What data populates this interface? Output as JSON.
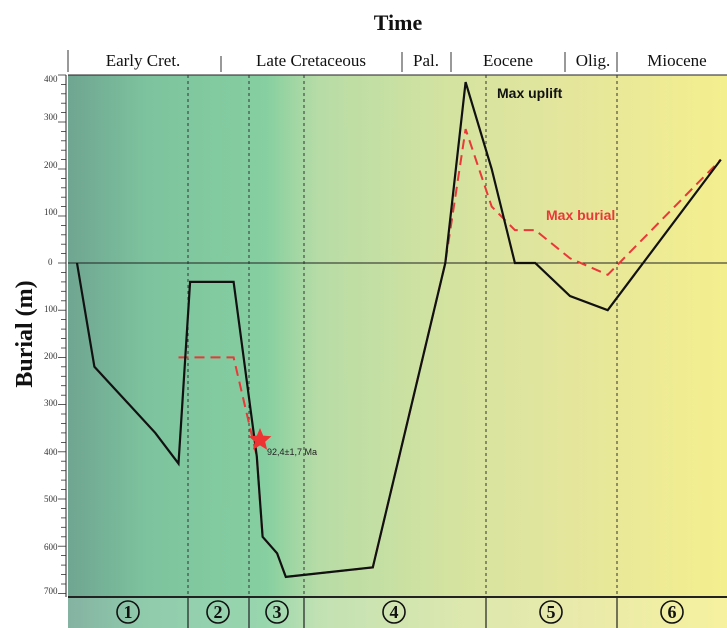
{
  "chart_data": {
    "type": "line",
    "title": "Time",
    "ylabel": "Burial (m)",
    "ylim": [
      -400,
      700
    ],
    "y_ticks_above": [
      "400",
      "300",
      "200",
      "100"
    ],
    "y_ticks_below": [
      "0",
      "100",
      "200",
      "300",
      "400",
      "500",
      "600",
      "700"
    ],
    "periods": [
      "Early Cret.",
      "Late Cretaceous",
      "Pal.",
      "Eocene",
      "Olig.",
      "Miocene"
    ],
    "phases": [
      "1",
      "2",
      "3",
      "4",
      "5",
      "6"
    ],
    "series": [
      {
        "color": "#111111",
        "style": "solid",
        "points": [
          [
            0,
            0
          ],
          [
            6,
            220
          ],
          [
            27,
            360
          ],
          [
            35,
            425
          ],
          [
            39,
            40
          ],
          [
            54,
            40
          ],
          [
            62,
            410
          ],
          [
            64,
            580
          ],
          [
            69,
            615
          ],
          [
            72,
            665
          ],
          [
            102,
            645
          ],
          [
            127,
            0
          ],
          [
            134,
            -385
          ],
          [
            143,
            -200
          ],
          [
            151,
            0
          ],
          [
            158,
            0
          ],
          [
            170,
            70
          ],
          [
            183,
            100
          ],
          [
            222,
            -220
          ]
        ]
      },
      {
        "color": "#e83838",
        "style": "dashed",
        "points": [
          [
            35,
            200
          ],
          [
            54,
            200
          ],
          [
            62,
            410
          ],
          [
            64,
            580
          ],
          [
            69,
            615
          ],
          [
            72,
            665
          ],
          [
            102,
            645
          ],
          [
            127,
            0
          ],
          [
            134,
            -285
          ],
          [
            143,
            -120
          ],
          [
            151,
            -70
          ],
          [
            158,
            -70
          ],
          [
            170,
            -10
          ],
          [
            183,
            25
          ],
          [
            222,
            -220
          ]
        ]
      }
    ],
    "annotations": [
      {
        "text": "Max uplift",
        "color": "#111111"
      },
      {
        "text": "Max burial",
        "color": "#e83838"
      },
      {
        "text": "92,4±1,7 Ma",
        "color": "#222222"
      }
    ]
  }
}
